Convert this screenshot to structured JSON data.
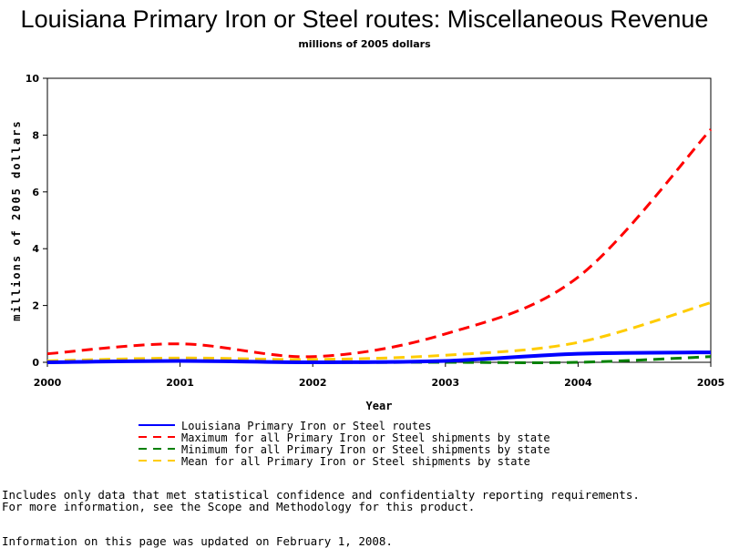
{
  "title": "Louisiana Primary Iron or Steel routes: Miscellaneous Revenue",
  "subtitle": "millions of 2005 dollars",
  "chart_data": {
    "type": "line",
    "x": [
      2000,
      2001,
      2002,
      2003,
      2004,
      2005
    ],
    "xlabel": "Year",
    "ylabel": "millions of 2005 dollars",
    "xlim": [
      2000,
      2005
    ],
    "ylim": [
      0,
      10
    ],
    "yticks": [
      0,
      2,
      4,
      6,
      8,
      10
    ],
    "xticks": [
      2000,
      2001,
      2002,
      2003,
      2004,
      2005
    ],
    "grid": false,
    "legend_position": "bottom",
    "series": [
      {
        "name": "Louisiana Primary Iron or Steel routes",
        "values": [
          0.0,
          0.05,
          0.0,
          0.05,
          0.3,
          0.35
        ],
        "color": "#0000ff",
        "dash": "solid"
      },
      {
        "name": "Maximum for all Primary Iron or Steel shipments by state",
        "values": [
          0.3,
          0.65,
          0.2,
          1.0,
          3.0,
          8.2
        ],
        "color": "#ff0000",
        "dash": "dashed"
      },
      {
        "name": "Minimum for all Primary Iron or Steel shipments by state",
        "values": [
          0.0,
          0.05,
          0.0,
          0.0,
          0.0,
          0.2
        ],
        "color": "#008000",
        "dash": "dashed"
      },
      {
        "name": "Mean for all Primary Iron or Steel shipments by state",
        "values": [
          0.05,
          0.15,
          0.1,
          0.25,
          0.7,
          2.1
        ],
        "color": "#ffcc00",
        "dash": "dashed"
      }
    ]
  },
  "notes": {
    "line1": "Includes only data that met statistical confidence and confidentialty reporting requirements.",
    "line2": "For more information, see the Scope and Methodology for this product.",
    "updated": "Information on this page was updated on February 1, 2008."
  }
}
